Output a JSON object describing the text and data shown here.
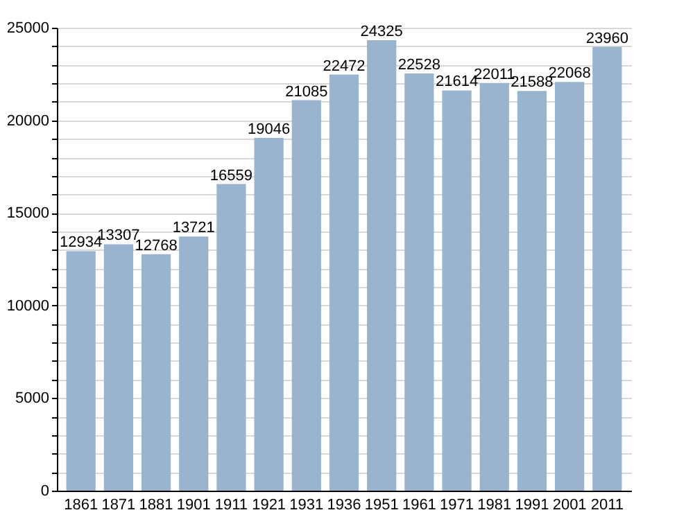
{
  "chart_data": {
    "type": "bar",
    "categories": [
      "1861",
      "1871",
      "1881",
      "1901",
      "1911",
      "1921",
      "1931",
      "1936",
      "1951",
      "1961",
      "1971",
      "1981",
      "1991",
      "2001",
      "2011"
    ],
    "values": [
      12934,
      13307,
      12768,
      13721,
      16559,
      19046,
      21085,
      22472,
      24325,
      22528,
      21614,
      22011,
      21588,
      22068,
      23960
    ],
    "color": "#9ab4d0",
    "data_labels": true,
    "grid": "y",
    "ylim": [
      0,
      25000
    ],
    "yticks": [
      0,
      {
        "value": 1000,
        "label": null
      },
      {
        "value": 2000,
        "label": null
      },
      {
        "value": 3000,
        "label": null
      },
      {
        "value": 4000,
        "label": null
      },
      5000,
      {
        "value": 6000,
        "label": null
      },
      {
        "value": 7000,
        "label": null
      },
      {
        "value": 8000,
        "label": null
      },
      {
        "value": 9000,
        "label": null
      },
      10000,
      {
        "value": 11000,
        "label": null
      },
      {
        "value": 12000,
        "label": null
      },
      {
        "value": 13000,
        "label": null
      },
      {
        "value": 14000,
        "label": null
      },
      15000,
      {
        "value": 16000,
        "label": null
      },
      {
        "value": 17000,
        "label": null
      },
      {
        "value": 18000,
        "label": null
      },
      {
        "value": 19000,
        "label": null
      },
      20000,
      {
        "value": 21000,
        "label": null
      },
      {
        "value": 22000,
        "label": null
      },
      {
        "value": 23000,
        "label": null
      },
      {
        "value": 24000,
        "label": null
      },
      25000
    ]
  }
}
